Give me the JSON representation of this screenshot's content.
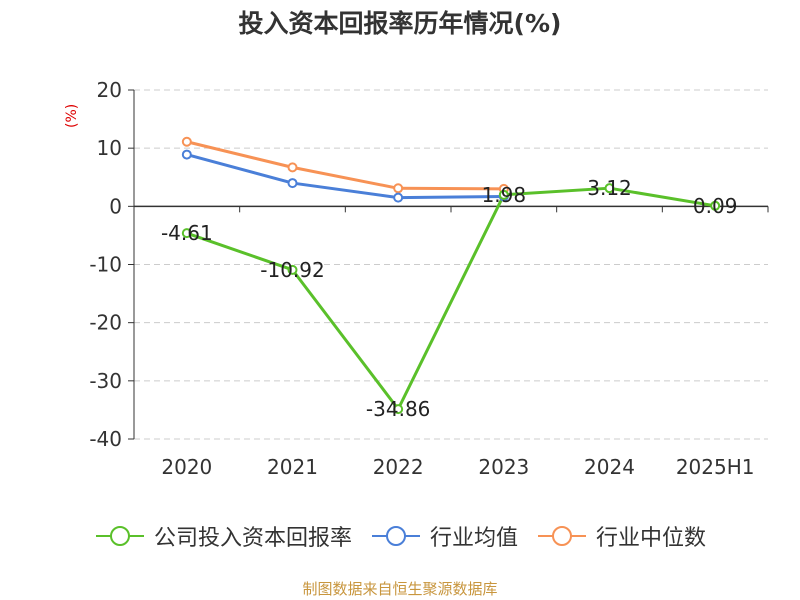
{
  "title": "投入资本回报率历年情况(%)",
  "unit_label": "(%)",
  "source": "制图数据来自恒生聚源数据库",
  "chart_data": {
    "type": "line",
    "title": "投入资本回报率历年情况(%)",
    "ylabel": "(%)",
    "categories": [
      "2020",
      "2021",
      "2022",
      "2023",
      "2024",
      "2025H1"
    ],
    "ylim": [
      -40,
      20
    ],
    "yticks": [
      "20",
      "10",
      "0",
      "-10",
      "-20",
      "-30",
      "-40"
    ],
    "grid": true,
    "legend_position": "bottom",
    "series": [
      {
        "name": "公司投入资本回报率",
        "color": "#5ac02a",
        "values": [
          -4.61,
          -10.92,
          -34.86,
          1.98,
          3.12,
          0.09
        ],
        "labels": [
          "-4.61",
          "-10.92",
          "-34.86",
          "1.98",
          "3.12",
          "0.09"
        ]
      },
      {
        "name": "行业均值",
        "color": "#4a7fd8",
        "values": [
          8.9,
          4.0,
          1.5,
          1.7,
          null,
          null
        ]
      },
      {
        "name": "行业中位数",
        "color": "#f79255",
        "values": [
          11.1,
          6.7,
          3.1,
          3.0,
          null,
          null
        ]
      }
    ]
  }
}
